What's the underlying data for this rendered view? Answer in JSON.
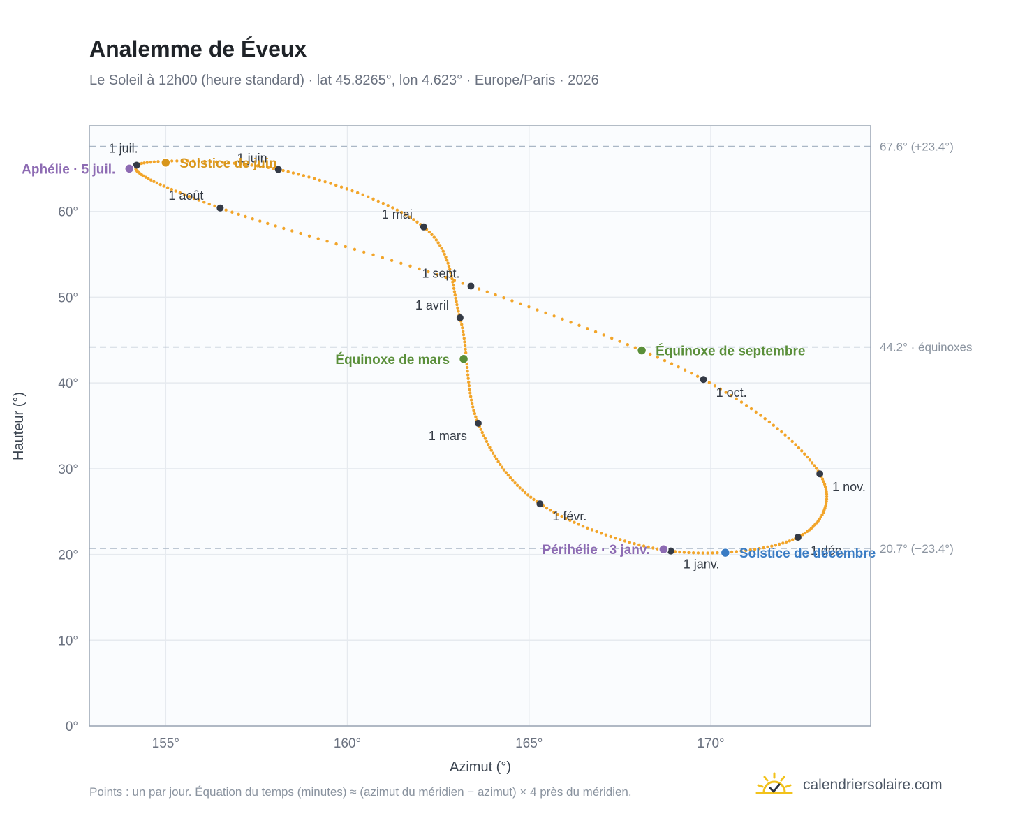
{
  "header": {
    "title": "Analemme de Éveux",
    "subtitle": "Le Soleil à 12h00 (heure standard) · lat 45.8265°, lon 4.623° · Europe/Paris · 2026"
  },
  "footer": {
    "note": "Points : un par jour. Équation du temps (minutes) ≈ (azimut du méridien − azimut) × 4 près du méridien.",
    "brand": "calendriersolaire.com",
    "brand_icon": "sun-check-icon"
  },
  "colors": {
    "curve": "#f2a52a",
    "month_dot": "#343a46",
    "solstice_june": "#d8961c",
    "solstice_dec": "#3a7cc4",
    "equinox": "#5a8f3a",
    "apsis": "#8d6bb3",
    "ref_line": "#aab7c6",
    "plot_bg": "#fafcfe",
    "grid": "#e6eaef",
    "frame": "#9aa5b4"
  },
  "chart_data": {
    "type": "scatter",
    "xlabel": "Azimut (°)",
    "ylabel": "Hauteur (°)",
    "xlim": [
      152.9,
      174.4
    ],
    "ylim": [
      0,
      70
    ],
    "xticks": [
      {
        "value": 155,
        "label": "155°"
      },
      {
        "value": 160,
        "label": "160°"
      },
      {
        "value": 165,
        "label": "165°"
      },
      {
        "value": 170,
        "label": "170°"
      }
    ],
    "yticks": [
      {
        "value": 0,
        "label": "0°"
      },
      {
        "value": 10,
        "label": "10°"
      },
      {
        "value": 20,
        "label": "20°"
      },
      {
        "value": 30,
        "label": "30°"
      },
      {
        "value": 40,
        "label": "40°"
      },
      {
        "value": 50,
        "label": "50°"
      },
      {
        "value": 60,
        "label": "60°"
      }
    ],
    "grid": true,
    "reference_lines": [
      {
        "y": 67.6,
        "label": "67.6° (+23.4°)"
      },
      {
        "y": 44.2,
        "label": "44.2° · équinoxes"
      },
      {
        "y": 20.7,
        "label": "20.7° (−23.4°)"
      }
    ],
    "months": [
      {
        "label": "1 janv.",
        "az": 168.9,
        "alt": 20.4
      },
      {
        "label": "1 févr.",
        "az": 165.3,
        "alt": 25.9
      },
      {
        "label": "1 mars",
        "az": 163.6,
        "alt": 35.3
      },
      {
        "label": "1 avril",
        "az": 163.1,
        "alt": 47.6
      },
      {
        "label": "1 mai",
        "az": 162.1,
        "alt": 58.2
      },
      {
        "label": "1 juin",
        "az": 158.1,
        "alt": 64.9
      },
      {
        "label": "1 juil.",
        "az": 154.2,
        "alt": 65.4
      },
      {
        "label": "1 août",
        "az": 156.5,
        "alt": 60.4
      },
      {
        "label": "1 sept.",
        "az": 163.4,
        "alt": 51.3
      },
      {
        "label": "1 oct.",
        "az": 169.8,
        "alt": 40.4
      },
      {
        "label": "1 nov.",
        "az": 173.0,
        "alt": 29.4
      },
      {
        "label": "1 déc.",
        "az": 172.4,
        "alt": 22.0
      }
    ],
    "events": [
      {
        "label": "Solstice de juin",
        "az": 155.0,
        "alt": 65.7,
        "color": "#d8961c"
      },
      {
        "label": "Aphélie · 5 juil.",
        "az": 154.0,
        "alt": 65.0,
        "color": "#8d6bb3"
      },
      {
        "label": "Équinoxe de mars",
        "az": 163.2,
        "alt": 42.8,
        "color": "#5a8f3a"
      },
      {
        "label": "Équinoxe de septembre",
        "az": 168.1,
        "alt": 43.8,
        "color": "#5a8f3a"
      },
      {
        "label": "Périhélie · 3 janv.",
        "az": 168.7,
        "alt": 20.6,
        "color": "#8d6bb3"
      },
      {
        "label": "Solstice de décembre",
        "az": 170.4,
        "alt": 20.2,
        "color": "#3a7cc4"
      }
    ]
  }
}
